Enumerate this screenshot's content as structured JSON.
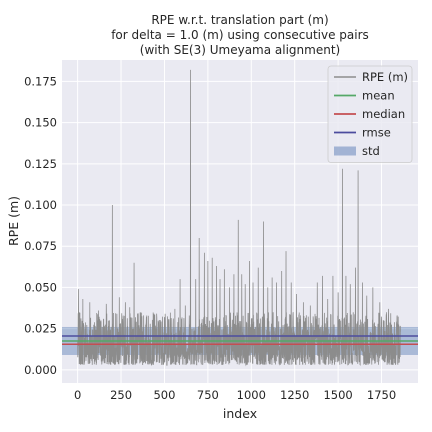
{
  "chart_data": {
    "type": "line",
    "title": [
      "RPE w.r.t. translation part (m)",
      "for delta = 1.0 (m) using consecutive pairs",
      "(with SE(3) Umeyama alignment)"
    ],
    "xlabel": "index",
    "ylabel": "RPE (m)",
    "xlim": [
      -90,
      1960
    ],
    "ylim": [
      -0.008,
      0.188
    ],
    "xticks": [
      0,
      250,
      500,
      750,
      1000,
      1250,
      1500,
      1750
    ],
    "xtick_labels": [
      "0",
      "250",
      "500",
      "750",
      "1000",
      "1250",
      "1500",
      "1750"
    ],
    "yticks": [
      0.0,
      0.025,
      0.05,
      0.075,
      0.1,
      0.125,
      0.15,
      0.175
    ],
    "ytick_labels": [
      "0.000",
      "0.025",
      "0.050",
      "0.075",
      "0.100",
      "0.125",
      "0.150",
      "0.175"
    ],
    "grid": true,
    "legend_position": "top-right",
    "series": [
      {
        "name": "RPE (m)",
        "kind": "line",
        "color": "#8c8c8c",
        "n_points": 1860,
        "baseline_min": 0.003,
        "baseline_max": 0.035,
        "peaks": [
          {
            "x": 5,
            "y": 0.049
          },
          {
            "x": 30,
            "y": 0.043
          },
          {
            "x": 70,
            "y": 0.041
          },
          {
            "x": 120,
            "y": 0.036
          },
          {
            "x": 165,
            "y": 0.04
          },
          {
            "x": 200,
            "y": 0.1
          },
          {
            "x": 240,
            "y": 0.044
          },
          {
            "x": 275,
            "y": 0.041
          },
          {
            "x": 300,
            "y": 0.038
          },
          {
            "x": 325,
            "y": 0.065
          },
          {
            "x": 380,
            "y": 0.033
          },
          {
            "x": 440,
            "y": 0.034
          },
          {
            "x": 500,
            "y": 0.032
          },
          {
            "x": 560,
            "y": 0.037
          },
          {
            "x": 590,
            "y": 0.055
          },
          {
            "x": 620,
            "y": 0.039
          },
          {
            "x": 650,
            "y": 0.182
          },
          {
            "x": 680,
            "y": 0.055
          },
          {
            "x": 700,
            "y": 0.08
          },
          {
            "x": 730,
            "y": 0.071
          },
          {
            "x": 750,
            "y": 0.066
          },
          {
            "x": 775,
            "y": 0.068
          },
          {
            "x": 800,
            "y": 0.063
          },
          {
            "x": 820,
            "y": 0.055
          },
          {
            "x": 845,
            "y": 0.061
          },
          {
            "x": 875,
            "y": 0.05
          },
          {
            "x": 900,
            "y": 0.058
          },
          {
            "x": 925,
            "y": 0.091
          },
          {
            "x": 945,
            "y": 0.058
          },
          {
            "x": 965,
            "y": 0.052
          },
          {
            "x": 990,
            "y": 0.066
          },
          {
            "x": 1010,
            "y": 0.053
          },
          {
            "x": 1040,
            "y": 0.062
          },
          {
            "x": 1070,
            "y": 0.09
          },
          {
            "x": 1095,
            "y": 0.05
          },
          {
            "x": 1120,
            "y": 0.056
          },
          {
            "x": 1145,
            "y": 0.053
          },
          {
            "x": 1175,
            "y": 0.06
          },
          {
            "x": 1200,
            "y": 0.072
          },
          {
            "x": 1230,
            "y": 0.053
          },
          {
            "x": 1260,
            "y": 0.046
          },
          {
            "x": 1300,
            "y": 0.041
          },
          {
            "x": 1340,
            "y": 0.039
          },
          {
            "x": 1380,
            "y": 0.053
          },
          {
            "x": 1410,
            "y": 0.057
          },
          {
            "x": 1440,
            "y": 0.043
          },
          {
            "x": 1470,
            "y": 0.057
          },
          {
            "x": 1500,
            "y": 0.047
          },
          {
            "x": 1525,
            "y": 0.122
          },
          {
            "x": 1545,
            "y": 0.057
          },
          {
            "x": 1570,
            "y": 0.052
          },
          {
            "x": 1600,
            "y": 0.062
          },
          {
            "x": 1615,
            "y": 0.121
          },
          {
            "x": 1640,
            "y": 0.053
          },
          {
            "x": 1665,
            "y": 0.045
          },
          {
            "x": 1700,
            "y": 0.05
          },
          {
            "x": 1740,
            "y": 0.041
          },
          {
            "x": 1790,
            "y": 0.037
          },
          {
            "x": 1840,
            "y": 0.033
          }
        ]
      },
      {
        "name": "mean",
        "kind": "hline",
        "color": "#55a868",
        "value": 0.0175
      },
      {
        "name": "median",
        "kind": "hline",
        "color": "#c44e52",
        "value": 0.0155
      },
      {
        "name": "rmse",
        "kind": "hline",
        "color": "#4c4c9e",
        "value": 0.0205
      },
      {
        "name": "std",
        "kind": "band",
        "color": "#4c72b0",
        "value": 0.0085,
        "band": [
          0.009,
          0.026
        ]
      }
    ]
  }
}
